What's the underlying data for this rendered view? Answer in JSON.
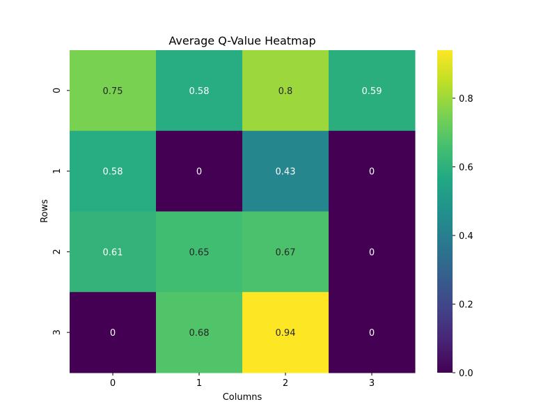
{
  "chart_data": {
    "type": "heatmap",
    "title": "Average Q-Value Heatmap",
    "xlabel": "Columns",
    "ylabel": "Rows",
    "x_categories": [
      "0",
      "1",
      "2",
      "3"
    ],
    "y_categories": [
      "0",
      "1",
      "2",
      "3"
    ],
    "values": [
      [
        0.75,
        0.58,
        0.8,
        0.59
      ],
      [
        0.58,
        0,
        0.43,
        0
      ],
      [
        0.61,
        0.65,
        0.67,
        0
      ],
      [
        0,
        0.68,
        0.94,
        0
      ]
    ],
    "cell_labels": [
      [
        "0.75",
        "0.58",
        "0.8",
        "0.59"
      ],
      [
        "0.58",
        "0",
        "0.43",
        "0"
      ],
      [
        "0.61",
        "0.65",
        "0.67",
        "0"
      ],
      [
        "0",
        "0.68",
        "0.94",
        "0"
      ]
    ],
    "colormap": "viridis",
    "vmin": 0,
    "vmax": 0.94,
    "colorbar_ticks": [
      0.0,
      0.2,
      0.4,
      0.6,
      0.8
    ],
    "colorbar_tick_labels": [
      "0.0",
      "0.2",
      "0.4",
      "0.6",
      "0.8"
    ],
    "annotation_color_dark": "#262626",
    "annotation_color_light": "#ffffff"
  }
}
